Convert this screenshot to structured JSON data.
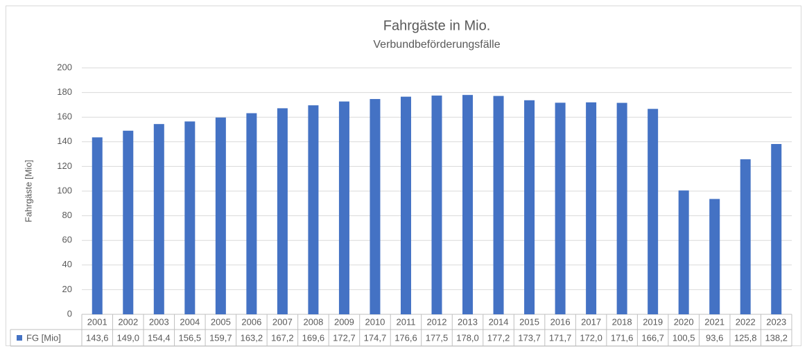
{
  "chart_data": {
    "type": "bar",
    "title": "Fahrgäste in Mio.",
    "subtitle": "Verbundbeförderungsfälle",
    "y_label": "Fahrgäste [Mio]",
    "categories": [
      "2001",
      "2002",
      "2003",
      "2004",
      "2005",
      "2006",
      "2007",
      "2008",
      "2009",
      "2010",
      "2011",
      "2012",
      "2013",
      "2014",
      "2015",
      "2016",
      "2017",
      "2018",
      "2019",
      "2020",
      "2021",
      "2022",
      "2023"
    ],
    "series": [
      {
        "name": "FG [Mio]",
        "color": "#4472c4",
        "values": [
          143.6,
          149.0,
          154.4,
          156.5,
          159.7,
          163.2,
          167.2,
          169.6,
          172.7,
          174.7,
          176.6,
          177.5,
          178.0,
          177.2,
          173.7,
          171.7,
          172.0,
          171.6,
          166.7,
          100.5,
          93.6,
          125.8,
          138.2
        ],
        "value_labels": [
          "143,6",
          "149,0",
          "154,4",
          "156,5",
          "159,7",
          "163,2",
          "167,2",
          "169,6",
          "172,7",
          "174,7",
          "176,6",
          "177,5",
          "178,0",
          "177,2",
          "173,7",
          "171,7",
          "172,0",
          "171,6",
          "166,7",
          "100,5",
          "93,6",
          "125,8",
          "138,2"
        ]
      }
    ],
    "ylim": [
      0,
      200
    ],
    "yticks": [
      0,
      20,
      40,
      60,
      80,
      100,
      120,
      140,
      160,
      180,
      200
    ],
    "grid": true
  }
}
